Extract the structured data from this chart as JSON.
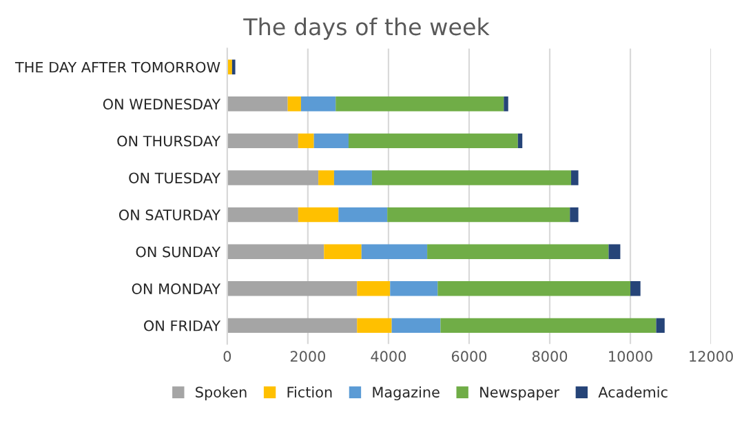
{
  "chart_data": {
    "type": "bar",
    "orientation": "horizontal",
    "stacked": true,
    "title": "The days of the week",
    "categories": [
      "THE DAY AFTER TOMORROW",
      "ON WEDNESDAY",
      "ON THURSDAY",
      "ON TUESDAY",
      "ON SATURDAY",
      "ON SUNDAY",
      "ON MONDAY",
      "ON FRIDAY"
    ],
    "series": [
      {
        "name": "Spoken",
        "color": "#a5a5a5",
        "values": [
          null,
          1500,
          1760,
          2260,
          1760,
          2400,
          3220,
          3220
        ]
      },
      {
        "name": "Fiction",
        "color": "#ffc000",
        "values": [
          120,
          330,
          390,
          390,
          1000,
          930,
          820,
          860
        ]
      },
      {
        "name": "Magazine",
        "color": "#5b9bd5",
        "values": [
          null,
          860,
          860,
          940,
          1210,
          1630,
          1180,
          1210
        ]
      },
      {
        "name": "Newspaper",
        "color": "#70ad47",
        "values": [
          null,
          4170,
          4200,
          4940,
          4530,
          4500,
          4780,
          5350
        ]
      },
      {
        "name": "Academic",
        "color": "#264478",
        "values": [
          80,
          110,
          110,
          180,
          210,
          290,
          250,
          210
        ]
      }
    ],
    "xlim": [
      0,
      12000
    ],
    "xticks": [
      0,
      2000,
      4000,
      6000,
      8000,
      10000,
      12000
    ],
    "grid": "x",
    "legend": "bottom"
  }
}
